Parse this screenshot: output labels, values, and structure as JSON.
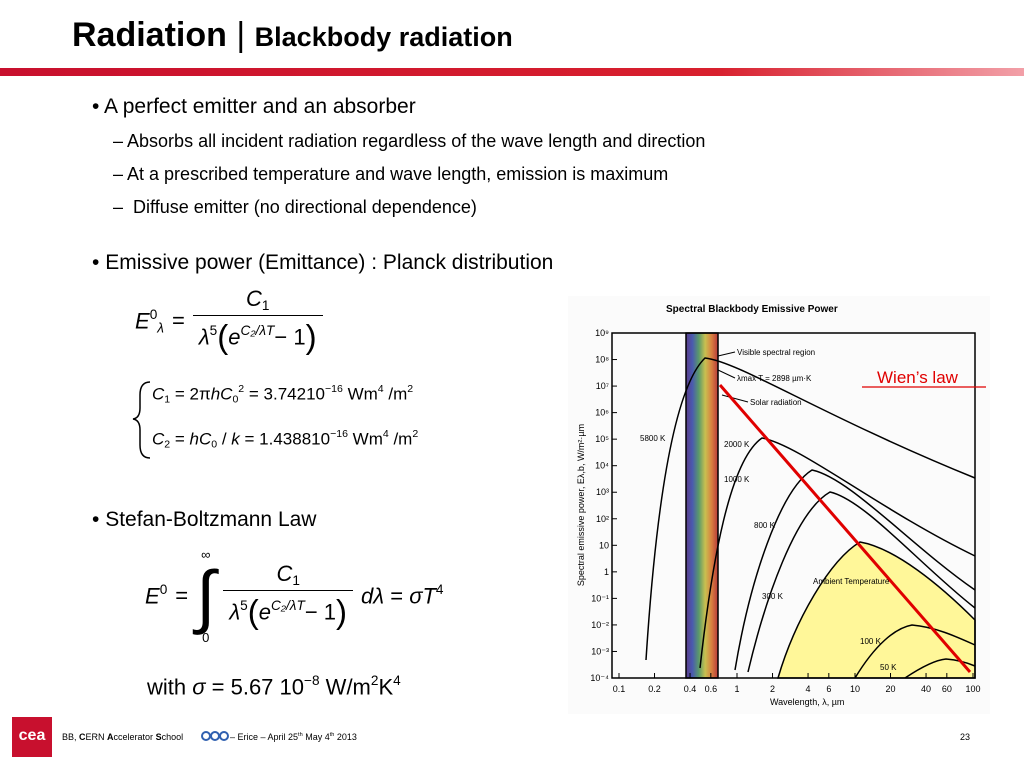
{
  "header": {
    "title": "Radiation",
    "separator": "|",
    "subtitle": "Blackbody radiation"
  },
  "bullets": [
    {
      "text": "A perfect emitter and an absorber",
      "sub": [
        "Absorbs all incident radiation regardless of the wave length and direction",
        "At a prescribed temperature and wave length, emission is maximum",
        "Diffuse emitter (no directional dependence)"
      ]
    },
    {
      "text": "Emissive power (Emittance) : Planck distribution"
    },
    {
      "text": "Stefan-Boltzmann Law"
    }
  ],
  "planck": {
    "lhs": [
      {
        "text": "E",
        "italic": true
      },
      {
        "text": "0",
        "pos": "sup"
      },
      {
        "text": "λ",
        "pos": "sub",
        "italic": true
      }
    ],
    "eq": "=",
    "num": [
      {
        "text": "C",
        "italic": true
      },
      {
        "text": "1",
        "pos": "sub"
      }
    ],
    "den": [
      {
        "text": "λ",
        "italic": true
      },
      {
        "text": "5",
        "pos": "sup"
      },
      {
        "text": "(",
        "pos": "big"
      },
      {
        "text": "e",
        "italic": true
      },
      {
        "text": "C₂/λT",
        "pos": "sup",
        "italic": true
      },
      {
        "text": "− 1"
      },
      {
        "text": ")",
        "pos": "big"
      }
    ]
  },
  "constants": [
    [
      {
        "text": "C",
        "italic": true
      },
      {
        "text": "1",
        "pos": "sub"
      },
      {
        "text": " = 2π"
      },
      {
        "text": "hC",
        "italic": true
      },
      {
        "text": "0",
        "pos": "sub"
      },
      {
        "text": "2",
        "pos": "sup"
      },
      {
        "text": " = 3.74210"
      },
      {
        "text": "−16",
        "pos": "sup"
      },
      {
        "text": " Wm"
      },
      {
        "text": "4",
        "pos": "sup"
      },
      {
        "text": " /m"
      },
      {
        "text": "2",
        "pos": "sup"
      }
    ],
    [
      {
        "text": "C",
        "italic": true
      },
      {
        "text": "2",
        "pos": "sub"
      },
      {
        "text": " = "
      },
      {
        "text": "hC",
        "italic": true
      },
      {
        "text": "0",
        "pos": "sub"
      },
      {
        "text": " / "
      },
      {
        "text": "k",
        "italic": true
      },
      {
        "text": " = 1.438810"
      },
      {
        "text": "−16",
        "pos": "sup"
      },
      {
        "text": " Wm"
      },
      {
        "text": "4",
        "pos": "sup"
      },
      {
        "text": " /m"
      },
      {
        "text": "2",
        "pos": "sup"
      }
    ]
  ],
  "stefan": {
    "lhs": [
      {
        "text": "E",
        "italic": true
      },
      {
        "text": "0",
        "pos": "sup"
      }
    ],
    "eq": "=",
    "integral": "∫",
    "upper": "∞",
    "lower": "0",
    "num": [
      {
        "text": "C",
        "italic": true
      },
      {
        "text": "1",
        "pos": "sub"
      }
    ],
    "den": [
      {
        "text": "λ",
        "italic": true
      },
      {
        "text": "5",
        "pos": "sup"
      },
      {
        "text": "(",
        "pos": "big"
      },
      {
        "text": "e",
        "italic": true
      },
      {
        "text": "C₂/λT",
        "pos": "sup",
        "italic": true
      },
      {
        "text": "− 1"
      },
      {
        "text": ")",
        "pos": "big"
      }
    ],
    "rhs": [
      {
        "text": "d",
        "italic": true
      },
      {
        "text": "λ",
        "italic": true
      },
      {
        "text": " = "
      },
      {
        "text": "σT",
        "italic": true
      },
      {
        "text": "4",
        "pos": "sup"
      }
    ],
    "with": [
      {
        "text": "with "
      },
      {
        "text": "σ",
        "italic": true
      },
      {
        "text": " = 5.67 10"
      },
      {
        "text": "−8",
        "pos": "sup"
      },
      {
        "text": " W/m"
      },
      {
        "text": "2",
        "pos": "sup"
      },
      {
        "text": "K"
      },
      {
        "text": "4",
        "pos": "sup"
      }
    ]
  },
  "figure": {
    "title": "Spectral Blackbody Emissive Power",
    "ylabel": "Spectral emissive power, Eλ,b, W/m²·µm",
    "xlabel": "Wavelength, λ, µm",
    "xticks": [
      "0.1",
      "0.2",
      "0.4",
      "0.6",
      "1",
      "2",
      "4",
      "6",
      "10",
      "20",
      "40",
      "60",
      "100"
    ],
    "yticks": [
      "10⁹",
      "10⁸",
      "10⁷",
      "10⁶",
      "10⁵",
      "10⁴",
      "10³",
      "10²",
      "10",
      "1",
      "10⁻¹",
      "10⁻²",
      "10⁻³",
      "10⁻⁴"
    ],
    "visible": "Visible spectral region",
    "wien_formula": "λmax T = 2898 µm·K",
    "solar": "Solar radiation",
    "ambient": "Ambient Temperature",
    "curve_labels": [
      "5800 K",
      "2000 K",
      "1000 K",
      "800 K",
      "300 K",
      "100 K",
      "50 K"
    ],
    "wien_label": "Wien’s law"
  },
  "footer": {
    "logo": "cea",
    "school": [
      {
        "text": "BB, "
      },
      {
        "text": "C",
        "bold": true
      },
      {
        "text": "ERN "
      },
      {
        "text": "A",
        "bold": true
      },
      {
        "text": "ccelerator "
      },
      {
        "text": "S",
        "bold": true
      },
      {
        "text": "chool"
      }
    ],
    "date": [
      {
        "text": " – Erice – April 25"
      },
      {
        "text": "th",
        "pos": "sup"
      },
      {
        "text": "  May 4"
      },
      {
        "text": "th",
        "pos": "sup"
      },
      {
        "text": " 2013"
      }
    ],
    "page": "23"
  }
}
